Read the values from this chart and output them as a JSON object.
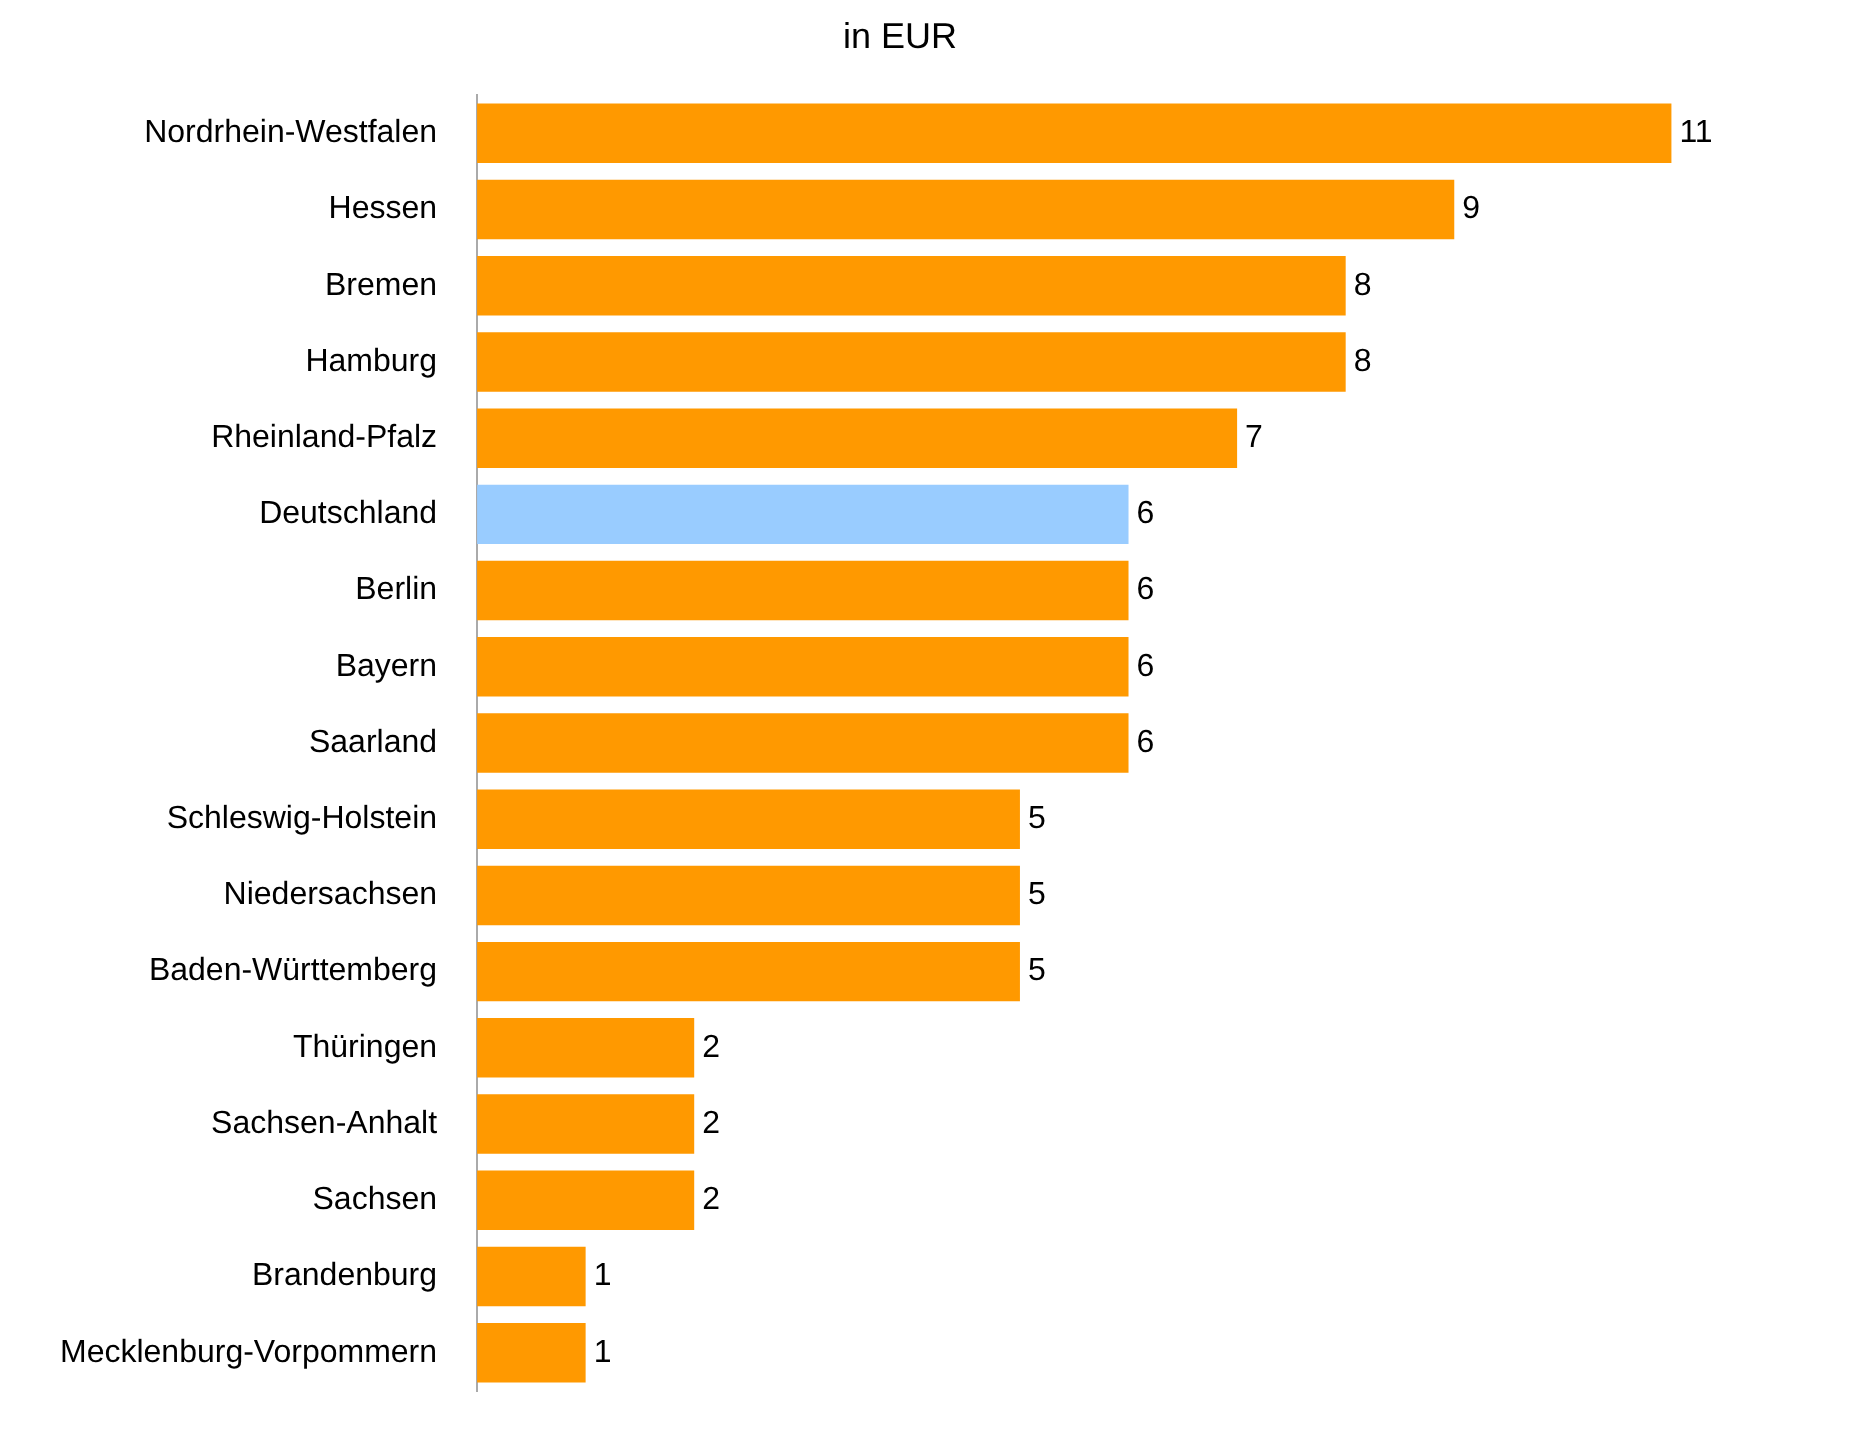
{
  "chart_data": {
    "type": "bar",
    "orientation": "horizontal",
    "title": "in EUR",
    "categories": [
      "Nordrhein-Westfalen",
      "Hessen",
      "Bremen",
      "Hamburg",
      "Rheinland-Pfalz",
      "Deutschland",
      "Berlin",
      "Bayern",
      "Saarland",
      "Schleswig-Holstein",
      "Niedersachsen",
      "Baden-Württemberg",
      "Thüringen",
      "Sachsen-Anhalt",
      "Sachsen",
      "Brandenburg",
      "Mecklenburg-Vorpommern"
    ],
    "values": [
      11,
      9,
      8,
      8,
      7,
      6,
      6,
      6,
      6,
      5,
      5,
      5,
      2,
      2,
      2,
      1,
      1
    ],
    "colors": [
      "#ff9900",
      "#ff9900",
      "#ff9900",
      "#ff9900",
      "#ff9900",
      "#99ccff",
      "#ff9900",
      "#ff9900",
      "#ff9900",
      "#ff9900",
      "#ff9900",
      "#ff9900",
      "#ff9900",
      "#ff9900",
      "#ff9900",
      "#ff9900",
      "#ff9900"
    ],
    "data_labels": true
  }
}
